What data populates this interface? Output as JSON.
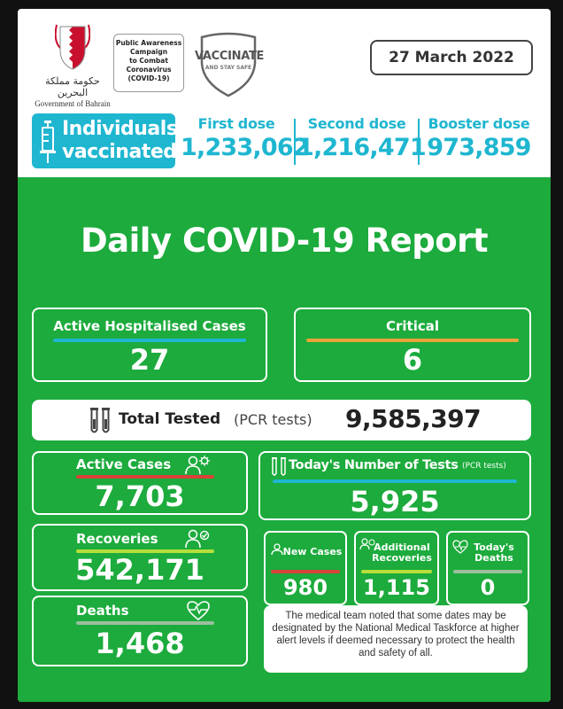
{
  "header": {
    "gov_arabic": "حكومة مملكة البحرين",
    "gov_english": "Government of Bahrain",
    "campaign_text": "Public Awareness\nCampaign\nto Combat\nCoronavirus\n(COVID-19)",
    "vaccinate_title": "VACCINATE",
    "vaccinate_sub": "AND STAY SAFE",
    "date": "27 March 2022"
  },
  "vaccination": {
    "label_line1": "Individuals",
    "label_line2": "vaccinated",
    "doses": [
      {
        "label": "First dose",
        "value": "1,233,062"
      },
      {
        "label": "Second dose",
        "value": "1,216,471"
      },
      {
        "label": "Booster dose",
        "value": "973,859"
      }
    ]
  },
  "report_title": "Daily COVID-19 Report",
  "hospital": {
    "label": "Active Hospitalised Cases",
    "value": "27"
  },
  "critical": {
    "label": "Critical",
    "value": "6"
  },
  "total_tested": {
    "label": "Total Tested",
    "suffix": "(PCR tests)",
    "value": "9,585,397"
  },
  "active_cases": {
    "label": "Active Cases",
    "value": "7,703"
  },
  "recoveries": {
    "label": "Recoveries",
    "value": "542,171"
  },
  "deaths": {
    "label": "Deaths",
    "value": "1,468"
  },
  "todays_tests": {
    "label": "Today's Number of Tests",
    "suffix": "(PCR tests)",
    "value": "5,925"
  },
  "daily": {
    "new_cases": {
      "label": "New Cases",
      "value": "980"
    },
    "additional_recoveries": {
      "label_line1": "Additional",
      "label_line2": "Recoveries",
      "value": "1,115"
    },
    "todays_deaths": {
      "label_line1": "Today's",
      "label_line2": "Deaths",
      "value": "0"
    }
  },
  "note": "The medical team noted that some dates may be designated by the National Medical Taskforce at higher alert levels if deemed necessary to protect the health and safety of all.",
  "colors": {
    "green": "#1cab3c",
    "cyan": "#1fb6d0",
    "orange": "#e8a33a",
    "red": "#d9423a",
    "lime": "#b6df3a",
    "gray": "#9bbf9f"
  },
  "icons": [
    "bahrain-crest-icon",
    "shield-icon",
    "syringe-icon",
    "test-tubes-icon",
    "person-virus-icon",
    "person-check-icon",
    "heart-pulse-icon"
  ]
}
